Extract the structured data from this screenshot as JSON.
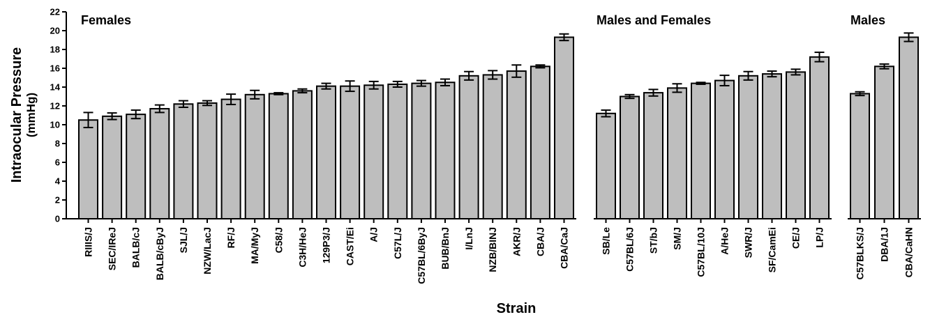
{
  "chart_data": {
    "type": "bar",
    "title": "",
    "xlabel": "Strain",
    "ylabel": "Intraocular Pressure",
    "ylabel_unit": "(mmHg)",
    "ylim": [
      0,
      22
    ],
    "yticks": [
      0,
      2,
      4,
      6,
      8,
      10,
      12,
      14,
      16,
      18,
      20,
      22
    ],
    "grid": false,
    "bar_color": "#bebebe",
    "groups": [
      {
        "name": "Females",
        "categories": [
          "RIIIS/J",
          "SEC/IReJ",
          "BALB/cJ",
          "BALB/cByJ",
          "SJL/J",
          "NZW/LacJ",
          "RF/J",
          "MA/MyJ",
          "C58/J",
          "C3H/HeJ",
          "129P3/J",
          "CAST/Ei",
          "A/J",
          "C57L/J",
          "C57BL/6ByJ",
          "BUB/BnJ",
          "I/LnJ",
          "NZB/BINJ",
          "AKR/J",
          "CBA/J",
          "CBA/CaJ"
        ],
        "values": [
          10.5,
          10.9,
          11.1,
          11.7,
          12.2,
          12.3,
          12.7,
          13.2,
          13.3,
          13.6,
          14.1,
          14.1,
          14.2,
          14.3,
          14.4,
          14.5,
          15.2,
          15.3,
          15.7,
          16.2,
          19.3
        ],
        "errors": [
          0.8,
          0.35,
          0.45,
          0.4,
          0.35,
          0.25,
          0.55,
          0.45,
          0.1,
          0.2,
          0.3,
          0.55,
          0.4,
          0.3,
          0.3,
          0.35,
          0.45,
          0.45,
          0.65,
          0.15,
          0.35
        ]
      },
      {
        "name": "Males and Females",
        "categories": [
          "SB/Le",
          "C57BL/6J",
          "ST/bJ",
          "SM/J",
          "C57BL/10J",
          "A/HeJ",
          "SWR/J",
          "SF/CamEi",
          "CE/J",
          "LP/J"
        ],
        "values": [
          11.2,
          13.0,
          13.4,
          13.9,
          14.4,
          14.7,
          15.2,
          15.4,
          15.6,
          17.2
        ],
        "errors": [
          0.35,
          0.2,
          0.35,
          0.45,
          0.1,
          0.55,
          0.45,
          0.3,
          0.3,
          0.5
        ]
      },
      {
        "name": "Males",
        "categories": [
          "C57BLKS/J",
          "DBA/1J",
          "CBA/CaHN"
        ],
        "values": [
          13.3,
          16.2,
          19.3
        ],
        "errors": [
          0.2,
          0.25,
          0.45
        ]
      }
    ]
  }
}
